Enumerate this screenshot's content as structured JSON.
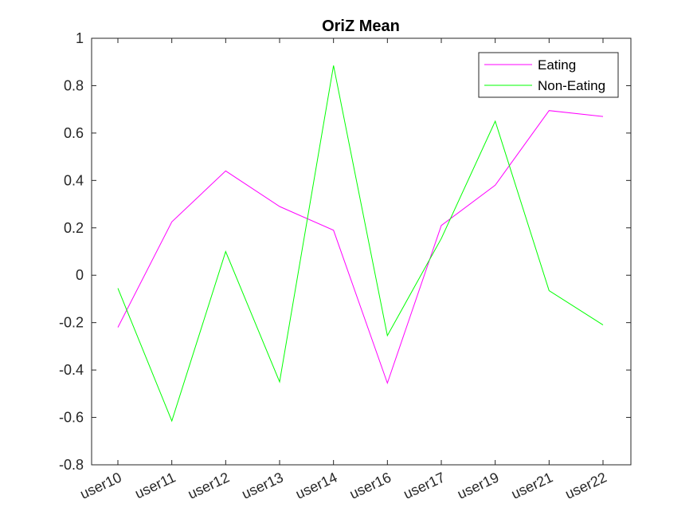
{
  "chart_data": {
    "type": "line",
    "title": "OriZ Mean",
    "xlabel": "",
    "ylabel": "",
    "categories": [
      "user10",
      "user11",
      "user12",
      "user13",
      "user14",
      "user16",
      "user17",
      "user19",
      "user21",
      "user22"
    ],
    "ylim": [
      -0.8,
      1
    ],
    "yticks": [
      "-0.8",
      "-0.6",
      "-0.4",
      "-0.2",
      "0",
      "0.2",
      "0.4",
      "0.6",
      "0.8",
      "1"
    ],
    "grid": false,
    "legend_position": "top-right",
    "series": [
      {
        "name": "Eating",
        "color": "#ff00ff",
        "values": [
          -0.22,
          0.225,
          0.44,
          0.29,
          0.19,
          -0.455,
          0.21,
          0.38,
          0.695,
          0.67
        ]
      },
      {
        "name": "Non-Eating",
        "color": "#00ff00",
        "values": [
          -0.055,
          -0.615,
          0.1,
          -0.45,
          0.885,
          -0.255,
          0.155,
          0.65,
          -0.065,
          -0.21
        ]
      }
    ]
  }
}
